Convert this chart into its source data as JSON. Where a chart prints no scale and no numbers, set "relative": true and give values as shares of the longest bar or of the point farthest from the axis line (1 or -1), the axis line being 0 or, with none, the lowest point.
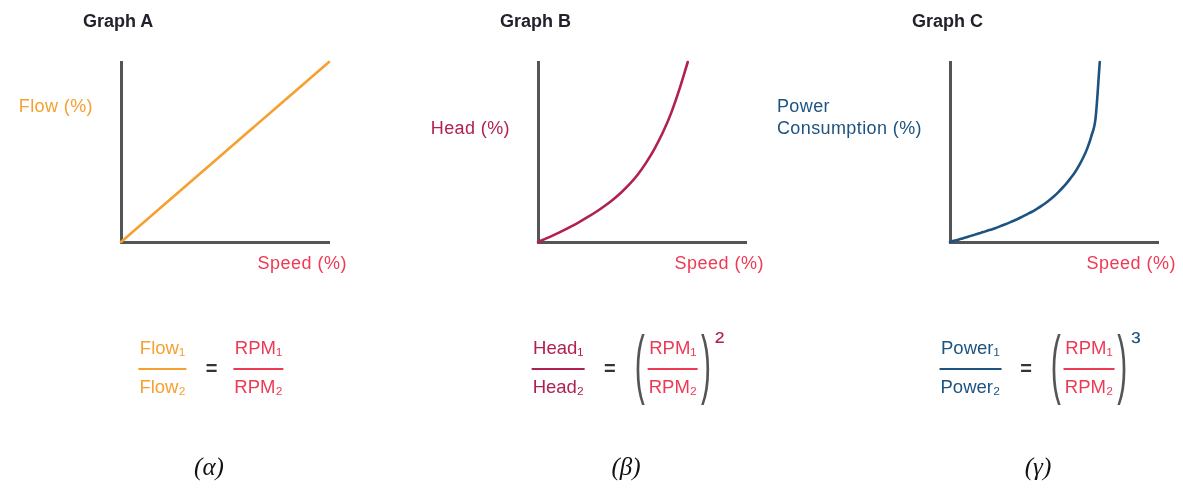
{
  "chart_data": [
    {
      "type": "line",
      "title": "Graph A",
      "xlabel": "Speed (%)",
      "ylabel": "Flow (%)",
      "relative": true,
      "categories": [
        null,
        null,
        null,
        null,
        null
      ],
      "values": [
        0,
        0.25,
        0.5,
        0.75,
        1
      ],
      "color": "#f5a031",
      "annotations": [
        "Flow₁",
        "Flow₂",
        "=",
        "RPM₁",
        "RPM₂",
        "(α)"
      ]
    },
    {
      "type": "line",
      "title": "Graph B",
      "xlabel": "Speed (%)",
      "ylabel": "Head (%)",
      "relative": true,
      "categories": [
        null,
        null,
        null,
        null,
        null,
        null,
        null,
        null,
        null,
        null,
        null,
        null,
        null,
        null,
        null,
        null,
        null,
        null,
        null,
        null,
        null,
        null,
        null,
        null,
        null,
        null
      ],
      "values": [
        0,
        0.02,
        0.041,
        0.063,
        0.087,
        0.112,
        0.139,
        0.168,
        0.2,
        0.235,
        0.275,
        0.321,
        0.375,
        0.441,
        0.518,
        0.608,
        0.716,
        0.849,
        1,
        null,
        null,
        null,
        null,
        null,
        null,
        null
      ],
      "color": "#b0214f",
      "annotations": [
        "Head₁",
        "Head₂",
        "=",
        "(",
        "RPM₁",
        "RPM₂",
        ")",
        "²",
        "(β)"
      ]
    },
    {
      "type": "line",
      "title": "Graph C",
      "xlabel": "Speed (%)",
      "ylabel": "Power\nConsumption (%)",
      "relative": true,
      "categories": [
        null,
        null,
        null,
        null,
        null,
        null,
        null,
        null,
        null,
        null,
        null,
        null,
        null,
        null,
        null,
        null,
        null,
        null,
        null,
        null,
        null,
        null,
        null,
        null,
        null,
        null,
        null,
        null,
        null,
        null,
        null,
        null,
        null,
        null,
        null,
        null,
        null,
        null,
        null,
        null,
        null,
        null,
        null,
        null,
        null,
        null,
        null,
        null,
        null,
        null,
        null
      ],
      "values": [
        0,
        0.007,
        0.013,
        0.02,
        0.027,
        0.034,
        0.041,
        0.048,
        0.055,
        0.063,
        0.07,
        0.078,
        0.087,
        0.096,
        0.105,
        0.115,
        0.125,
        0.136,
        0.148,
        0.16,
        0.172,
        0.186,
        0.201,
        0.217,
        0.235,
        0.254,
        0.276,
        0.3,
        0.326,
        0.355,
        0.386,
        0.424,
        0.468,
        0.52,
        0.59,
        0.69,
        1,
        null,
        null,
        null,
        null,
        null,
        null,
        null,
        null,
        null,
        null,
        null,
        null,
        null,
        null
      ],
      "color": "#1d5380",
      "annotations": [
        "Power₁",
        "Power₂",
        "=",
        "(",
        "RPM₁",
        "RPM₂",
        ")",
        "³",
        "(γ)"
      ]
    }
  ]
}
